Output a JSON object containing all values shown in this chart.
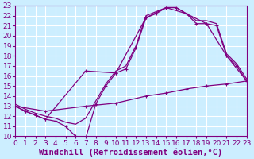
{
  "background_color": "#cceeff",
  "line_color": "#800080",
  "grid_color": "#ffffff",
  "xlabel": "Windchill (Refroidissement éolien,°C)",
  "xlabel_fontsize": 7.5,
  "tick_fontsize": 6.5,
  "xlim": [
    0,
    23
  ],
  "ylim": [
    10,
    23
  ],
  "xticks": [
    0,
    1,
    2,
    3,
    4,
    5,
    6,
    7,
    8,
    9,
    10,
    11,
    12,
    13,
    14,
    15,
    16,
    17,
    18,
    19,
    20,
    21,
    22,
    23
  ],
  "yticks": [
    10,
    11,
    12,
    13,
    14,
    15,
    16,
    17,
    18,
    19,
    20,
    21,
    22,
    23
  ],
  "curve_zigzag_x": [
    0,
    1,
    2,
    3,
    4,
    5,
    6,
    7,
    8,
    9,
    10,
    11,
    12,
    13,
    14,
    15,
    16,
    17,
    18,
    19,
    20,
    21,
    22,
    23
  ],
  "curve_zigzag_y": [
    13.0,
    12.5,
    12.1,
    11.7,
    11.5,
    11.0,
    10.0,
    9.8,
    13.2,
    15.0,
    16.3,
    16.7,
    18.8,
    21.8,
    22.2,
    22.8,
    22.8,
    22.2,
    21.2,
    21.2,
    21.0,
    18.0,
    17.0,
    15.5
  ],
  "curve_smooth_x": [
    0,
    1,
    2,
    3,
    4,
    5,
    6,
    7,
    8,
    9,
    10,
    11,
    12,
    13,
    14,
    15,
    16,
    17,
    18,
    19,
    20,
    21,
    22,
    23
  ],
  "curve_smooth_y": [
    13.2,
    12.7,
    12.3,
    12.0,
    11.8,
    11.4,
    11.2,
    11.8,
    13.5,
    15.2,
    16.5,
    17.0,
    19.0,
    22.0,
    22.4,
    22.8,
    22.8,
    22.2,
    21.5,
    21.5,
    21.2,
    18.2,
    17.2,
    15.7
  ],
  "curve_outer_x": [
    0,
    1,
    3,
    7,
    10,
    13,
    15,
    17,
    19,
    21,
    23
  ],
  "curve_outer_y": [
    13.0,
    12.5,
    11.7,
    16.5,
    16.3,
    21.8,
    22.8,
    22.2,
    21.2,
    18.0,
    15.5
  ],
  "curve_linear_x": [
    0,
    3,
    7,
    10,
    13,
    15,
    17,
    19,
    21,
    23
  ],
  "curve_linear_y": [
    13.0,
    12.5,
    13.0,
    13.3,
    14.0,
    14.3,
    14.7,
    15.0,
    15.2,
    15.5
  ]
}
